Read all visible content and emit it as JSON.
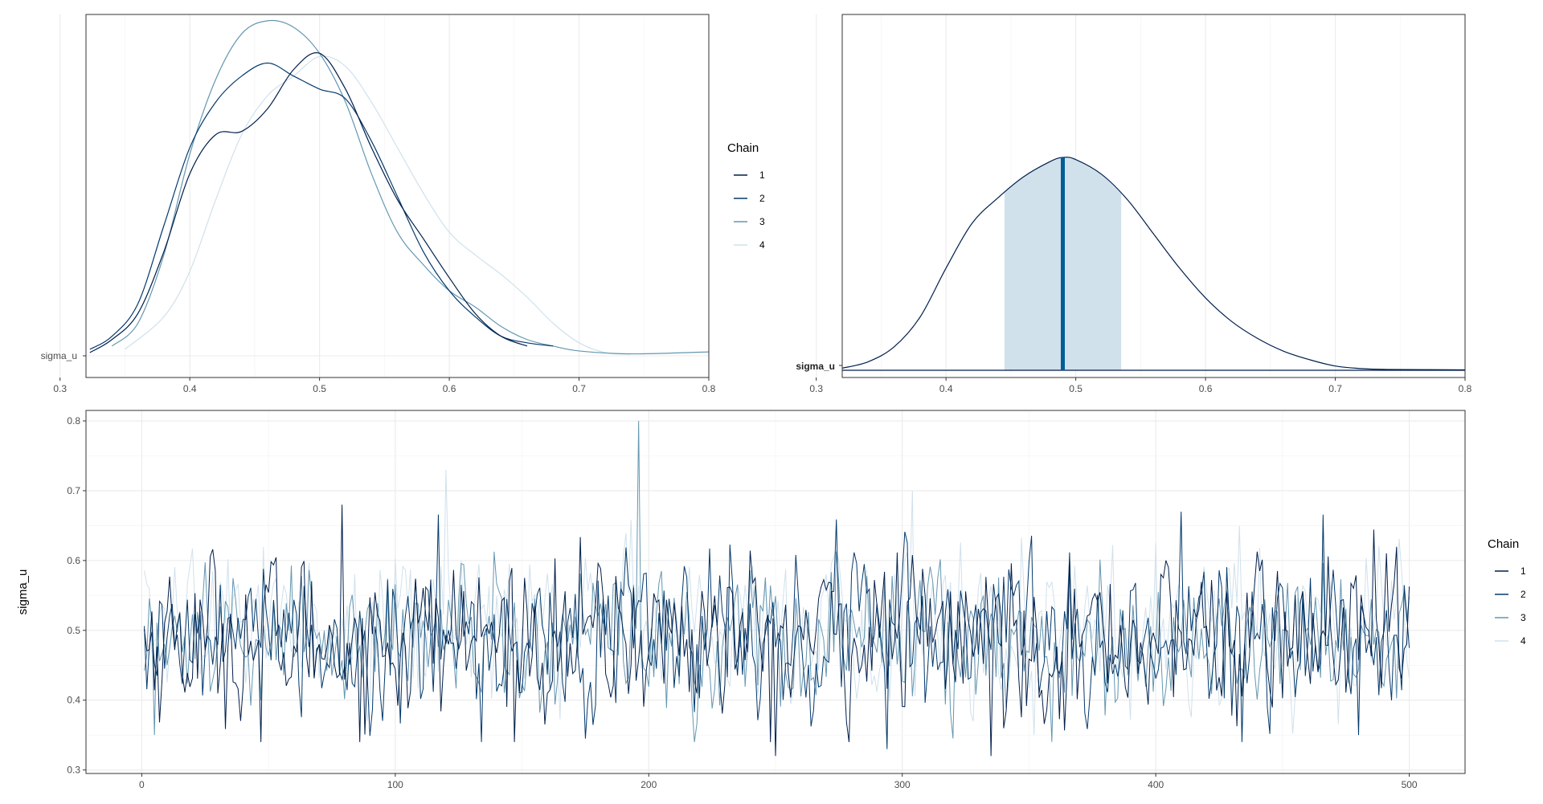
{
  "colors": {
    "chain1": "#011f4b",
    "chain2": "#03396c",
    "chain3": "#6497b1",
    "chain4": "#d0e1ec",
    "interval_fill": "#d1e1ec",
    "median_line": "#005b96",
    "density_line": "#011f4b"
  },
  "legend": {
    "title": "Chain",
    "labels": [
      "1",
      "2",
      "3",
      "4"
    ]
  },
  "chart_data": [
    {
      "type": "line",
      "panel": "density-overlay-by-chain",
      "y_category_label": "sigma_u",
      "xlim": [
        0.32,
        0.8
      ],
      "xticks": [
        "0.3",
        "0.4",
        "0.5",
        "0.6",
        "0.7",
        "0.8"
      ],
      "grid": true,
      "legend_position": "right",
      "series": [
        {
          "name": "1",
          "x": [
            0.323,
            0.34,
            0.36,
            0.38,
            0.4,
            0.42,
            0.44,
            0.46,
            0.48,
            0.5,
            0.52,
            0.54,
            0.56,
            0.58,
            0.6,
            0.62,
            0.64,
            0.66
          ],
          "y": [
            0.01,
            0.05,
            0.13,
            0.32,
            0.56,
            0.68,
            0.69,
            0.76,
            0.88,
            0.93,
            0.82,
            0.64,
            0.48,
            0.36,
            0.24,
            0.13,
            0.06,
            0.03
          ]
        },
        {
          "name": "2",
          "x": [
            0.323,
            0.34,
            0.36,
            0.38,
            0.4,
            0.42,
            0.44,
            0.46,
            0.48,
            0.5,
            0.52,
            0.54,
            0.56,
            0.58,
            0.6,
            0.62,
            0.64,
            0.66,
            0.68
          ],
          "y": [
            0.02,
            0.06,
            0.16,
            0.4,
            0.64,
            0.78,
            0.86,
            0.9,
            0.86,
            0.82,
            0.79,
            0.66,
            0.49,
            0.32,
            0.2,
            0.12,
            0.06,
            0.04,
            0.03
          ]
        },
        {
          "name": "3",
          "x": [
            0.34,
            0.36,
            0.38,
            0.4,
            0.42,
            0.44,
            0.46,
            0.48,
            0.5,
            0.52,
            0.54,
            0.56,
            0.58,
            0.6,
            0.62,
            0.64,
            0.66,
            0.68,
            0.7,
            0.74,
            0.8
          ],
          "y": [
            0.03,
            0.1,
            0.31,
            0.62,
            0.85,
            0.99,
            1.03,
            1.01,
            0.93,
            0.78,
            0.56,
            0.38,
            0.28,
            0.2,
            0.15,
            0.09,
            0.05,
            0.03,
            0.015,
            0.006,
            0.012
          ]
        },
        {
          "name": "4",
          "x": [
            0.35,
            0.38,
            0.4,
            0.42,
            0.44,
            0.46,
            0.48,
            0.5,
            0.52,
            0.54,
            0.56,
            0.58,
            0.6,
            0.62,
            0.64,
            0.66,
            0.68,
            0.7,
            0.72,
            0.74
          ],
          "y": [
            0.02,
            0.12,
            0.26,
            0.48,
            0.68,
            0.8,
            0.86,
            0.92,
            0.89,
            0.78,
            0.64,
            0.5,
            0.38,
            0.31,
            0.25,
            0.18,
            0.1,
            0.04,
            0.01,
            0.005
          ]
        }
      ]
    },
    {
      "type": "area",
      "panel": "posterior-area-with-interval",
      "y_category_label": "sigma_u",
      "xlim": [
        0.32,
        0.8
      ],
      "xticks": [
        "0.3",
        "0.4",
        "0.5",
        "0.6",
        "0.7",
        "0.8"
      ],
      "median": 0.49,
      "inner_interval": [
        0.445,
        0.535
      ],
      "outer_interval": [
        0.32,
        0.8
      ],
      "density": {
        "x": [
          0.32,
          0.34,
          0.36,
          0.38,
          0.4,
          0.42,
          0.44,
          0.46,
          0.48,
          0.49,
          0.5,
          0.52,
          0.54,
          0.56,
          0.58,
          0.6,
          0.62,
          0.64,
          0.66,
          0.68,
          0.7,
          0.72,
          0.74,
          0.8
        ],
        "y": [
          0.01,
          0.04,
          0.11,
          0.25,
          0.48,
          0.69,
          0.81,
          0.91,
          0.98,
          1.0,
          0.99,
          0.92,
          0.8,
          0.64,
          0.48,
          0.34,
          0.23,
          0.15,
          0.09,
          0.05,
          0.02,
          0.008,
          0.004,
          0.002
        ]
      }
    },
    {
      "type": "line",
      "panel": "trace-plot",
      "ylabel": "sigma_u",
      "xlim": [
        0,
        500
      ],
      "ylim": [
        0.32,
        0.8
      ],
      "xticks": [
        "0",
        "100",
        "200",
        "300",
        "400",
        "500"
      ],
      "yticks": [
        "0.3",
        "0.4",
        "0.5",
        "0.6",
        "0.7",
        "0.8"
      ],
      "iterations": 500,
      "grid": true,
      "legend_position": "right",
      "series": [
        {
          "name": "1",
          "mean": 0.49,
          "sd": 0.055,
          "peaks": [
            [
              79,
              0.68
            ],
            [
              250,
              0.32
            ],
            [
              335,
              0.32
            ],
            [
              47,
              0.34
            ]
          ]
        },
        {
          "name": "2",
          "mean": 0.49,
          "sd": 0.055,
          "peaks": [
            [
              410,
              0.67
            ],
            [
              294,
              0.33
            ],
            [
              480,
              0.35
            ]
          ]
        },
        {
          "name": "3",
          "mean": 0.49,
          "sd": 0.05,
          "peaks": [
            [
              196,
              0.8
            ],
            [
              5,
              0.35
            ]
          ]
        },
        {
          "name": "4",
          "mean": 0.51,
          "sd": 0.05,
          "peaks": [
            [
              120,
              0.73
            ],
            [
              304,
              0.7
            ],
            [
              352,
              0.35
            ]
          ]
        }
      ]
    }
  ]
}
